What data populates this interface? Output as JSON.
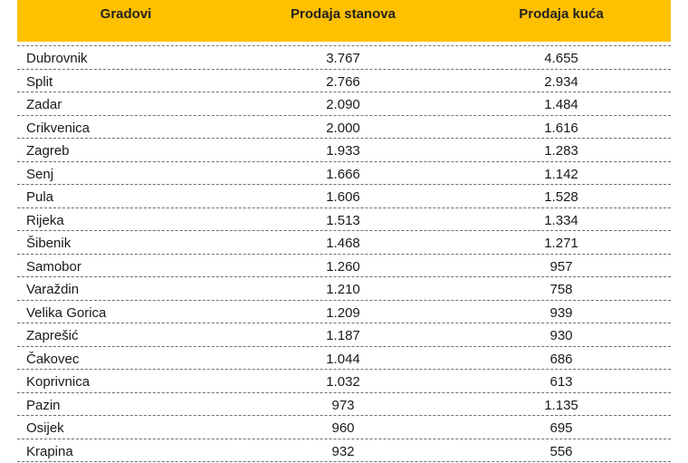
{
  "table": {
    "headers": [
      "Gradovi",
      "Prodaja stanova",
      "Prodaja kuća"
    ],
    "rows": [
      {
        "city": "Dubrovnik",
        "flats": "3.767",
        "houses": "4.655"
      },
      {
        "city": "Split",
        "flats": "2.766",
        "houses": "2.934"
      },
      {
        "city": "Zadar",
        "flats": "2.090",
        "houses": "1.484"
      },
      {
        "city": "Crikvenica",
        "flats": "2.000",
        "houses": "1.616"
      },
      {
        "city": "Zagreb",
        "flats": "1.933",
        "houses": "1.283"
      },
      {
        "city": "Senj",
        "flats": "1.666",
        "houses": "1.142"
      },
      {
        "city": "Pula",
        "flats": "1.606",
        "houses": "1.528"
      },
      {
        "city": "Rijeka",
        "flats": "1.513",
        "houses": "1.334"
      },
      {
        "city": "Šibenik",
        "flats": "1.468",
        "houses": "1.271"
      },
      {
        "city": "Samobor",
        "flats": "1.260",
        "houses": "957"
      },
      {
        "city": "Varaždin",
        "flats": "1.210",
        "houses": "758"
      },
      {
        "city": "Velika Gorica",
        "flats": "1.209",
        "houses": "939"
      },
      {
        "city": "Zaprešić",
        "flats": "1.187",
        "houses": "930"
      },
      {
        "city": "Čakovec",
        "flats": "1.044",
        "houses": "686"
      },
      {
        "city": "Koprivnica",
        "flats": "1.032",
        "houses": "613"
      },
      {
        "city": "Pazin",
        "flats": "973",
        "houses": "1.135"
      },
      {
        "city": "Osijek",
        "flats": "960",
        "houses": "695"
      },
      {
        "city": "Krapina",
        "flats": "932",
        "houses": "556"
      }
    ]
  },
  "colors": {
    "header_background": "#ffc000",
    "row_separator": "#6e6e6e"
  }
}
